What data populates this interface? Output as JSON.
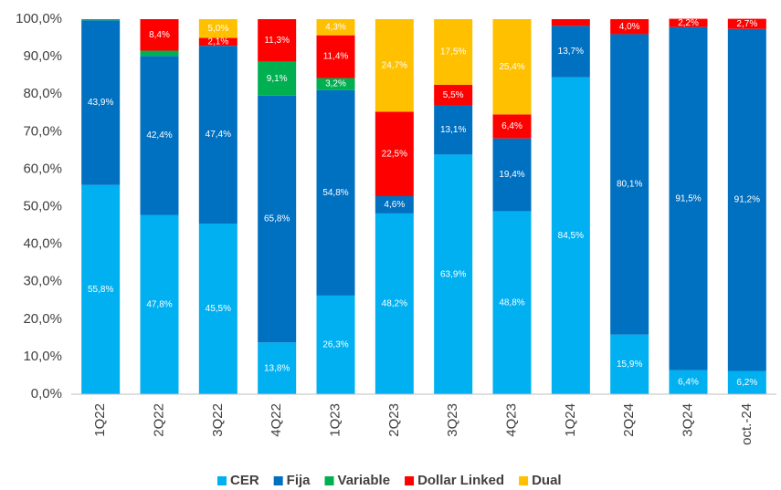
{
  "chart_data": {
    "type": "stacked_bar",
    "categories": [
      "1Q22",
      "2Q22",
      "3Q22",
      "4Q22",
      "1Q23",
      "2Q23",
      "3Q23",
      "4Q23",
      "1Q24",
      "2Q24",
      "3Q24",
      "oct.-24"
    ],
    "series": [
      {
        "name": "CER",
        "color": "#00b0f0",
        "values": [
          55.8,
          47.8,
          45.5,
          13.8,
          26.3,
          48.2,
          63.9,
          48.8,
          84.5,
          15.9,
          6.4,
          6.2
        ],
        "value_labels": [
          "55,8%",
          "47,8%",
          "45,5%",
          "13,8%",
          "26,3%",
          "48,2%",
          "63,9%",
          "48,8%",
          "84,5%",
          "15,9%",
          "6,4%",
          "6,2%"
        ]
      },
      {
        "name": "Fija",
        "color": "#0070c0",
        "values": [
          43.9,
          42.4,
          47.4,
          65.8,
          54.8,
          4.6,
          13.1,
          19.4,
          13.7,
          80.1,
          91.5,
          91.2
        ],
        "value_labels": [
          "43,9%",
          "42,4%",
          "47,4%",
          "65,8%",
          "54,8%",
          "4,6%",
          "13,1%",
          "19,4%",
          "13,7%",
          "80,1%",
          "91,5%",
          "91,2%"
        ]
      },
      {
        "name": "Variable",
        "color": "#00b050",
        "values": [
          0.3,
          1.4,
          null,
          9.1,
          3.2,
          null,
          null,
          null,
          null,
          null,
          null,
          null
        ],
        "value_labels": [
          null,
          null,
          null,
          "9,1%",
          "3,2%",
          null,
          null,
          null,
          null,
          null,
          null,
          null
        ]
      },
      {
        "name": "Dollar Linked",
        "color": "#ff0000",
        "values": [
          null,
          8.4,
          2.1,
          11.3,
          11.4,
          22.5,
          5.5,
          6.4,
          1.8,
          4.0,
          2.2,
          2.7
        ],
        "value_labels": [
          null,
          "8,4%",
          "2,1%",
          "11,3%",
          "11,4%",
          "22,5%",
          "5,5%",
          "6,4%",
          null,
          "4,0%",
          "2,2%",
          "2,7%"
        ]
      },
      {
        "name": "Dual",
        "color": "#ffc000",
        "values": [
          null,
          null,
          5.0,
          null,
          4.3,
          24.7,
          17.5,
          25.4,
          null,
          null,
          null,
          null
        ],
        "value_labels": [
          null,
          null,
          "5,0%",
          null,
          "4,3%",
          "24,7%",
          "17,5%",
          "25,4%",
          null,
          null,
          null,
          null
        ]
      }
    ],
    "ylim": [
      0,
      100
    ],
    "yticks": [
      {
        "value": 0,
        "label": "0,0%"
      },
      {
        "value": 10,
        "label": "10,0%"
      },
      {
        "value": 20,
        "label": "20,0%"
      },
      {
        "value": 30,
        "label": "30,0%"
      },
      {
        "value": 40,
        "label": "40,0%"
      },
      {
        "value": 50,
        "label": "50,0%"
      },
      {
        "value": 60,
        "label": "60,0%"
      },
      {
        "value": 70,
        "label": "70,0%"
      },
      {
        "value": 80,
        "label": "80,0%"
      },
      {
        "value": 90,
        "label": "90,0%"
      },
      {
        "value": 100,
        "label": "100,0%"
      }
    ],
    "grid": false,
    "legend": "bottom"
  }
}
